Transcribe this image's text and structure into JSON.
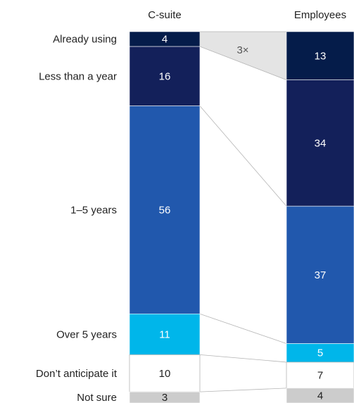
{
  "chart_data": {
    "type": "bar",
    "subtype": "stacked-100-percent-columns",
    "title": "",
    "xlabel": "",
    "ylabel": "",
    "categories": [
      "C-suite",
      "Employees"
    ],
    "segments": [
      {
        "label": "Already using",
        "values": [
          4,
          13
        ],
        "color": "#051c4a",
        "text_color": "#ffffff"
      },
      {
        "label": "Less than a year",
        "values": [
          16,
          34
        ],
        "color": "#13205a",
        "text_color": "#ffffff"
      },
      {
        "label": "1–5 years",
        "values": [
          56,
          37
        ],
        "color": "#2158ad",
        "text_color": "#ffffff"
      },
      {
        "label": "Over 5 years",
        "values": [
          11,
          5
        ],
        "color": "#00b6ea",
        "text_color": "#ffffff"
      },
      {
        "label": "Don’t anticipate it",
        "values": [
          10,
          7
        ],
        "color": "#ffffff",
        "text_color": "#222222",
        "outlined": true
      },
      {
        "label": "Not sure",
        "values": [
          3,
          4
        ],
        "color": "#cccccc",
        "text_color": "#222222"
      }
    ],
    "annotation": {
      "text": "3×",
      "between_segment": "Already using",
      "fill": "#e4e4e4"
    },
    "connector_color": "#b5b5b5"
  }
}
